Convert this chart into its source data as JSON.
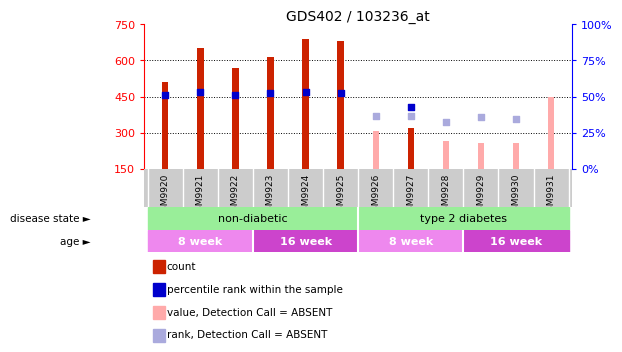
{
  "title": "GDS402 / 103236_at",
  "samples": [
    "GSM9920",
    "GSM9921",
    "GSM9922",
    "GSM9923",
    "GSM9924",
    "GSM9925",
    "GSM9926",
    "GSM9927",
    "GSM9928",
    "GSM9929",
    "GSM9930",
    "GSM9931"
  ],
  "count_values": [
    510,
    650,
    570,
    615,
    690,
    680,
    null,
    320,
    null,
    null,
    null,
    null
  ],
  "count_absent": [
    null,
    null,
    null,
    null,
    null,
    null,
    305,
    null,
    265,
    258,
    255,
    450
  ],
  "rank_values": [
    458,
    470,
    458,
    465,
    468,
    466,
    null,
    405,
    null,
    null,
    null,
    null
  ],
  "rank_absent": [
    null,
    null,
    null,
    null,
    null,
    null,
    370,
    370,
    345,
    365,
    355,
    null
  ],
  "ylim_left": [
    150,
    750
  ],
  "ylim_right": [
    0,
    100
  ],
  "yticks_left": [
    150,
    300,
    450,
    600,
    750
  ],
  "yticks_right": [
    0,
    25,
    50,
    75,
    100
  ],
  "bar_color_present": "#cc2200",
  "bar_color_absent": "#ffaaaa",
  "rank_color_present": "#0000cc",
  "rank_color_absent": "#aaaadd",
  "disease_color": "#99ee99",
  "age_bands": [
    {
      "label": "8 week",
      "start": 0,
      "end": 3,
      "color": "#ee88ee"
    },
    {
      "label": "16 week",
      "start": 3,
      "end": 6,
      "color": "#cc44cc"
    },
    {
      "label": "8 week",
      "start": 6,
      "end": 9,
      "color": "#ee88ee"
    },
    {
      "label": "16 week",
      "start": 9,
      "end": 12,
      "color": "#cc44cc"
    }
  ],
  "legend_items": [
    {
      "label": "count",
      "color": "#cc2200"
    },
    {
      "label": "percentile rank within the sample",
      "color": "#0000cc"
    },
    {
      "label": "value, Detection Call = ABSENT",
      "color": "#ffaaaa"
    },
    {
      "label": "rank, Detection Call = ABSENT",
      "color": "#aaaadd"
    }
  ]
}
